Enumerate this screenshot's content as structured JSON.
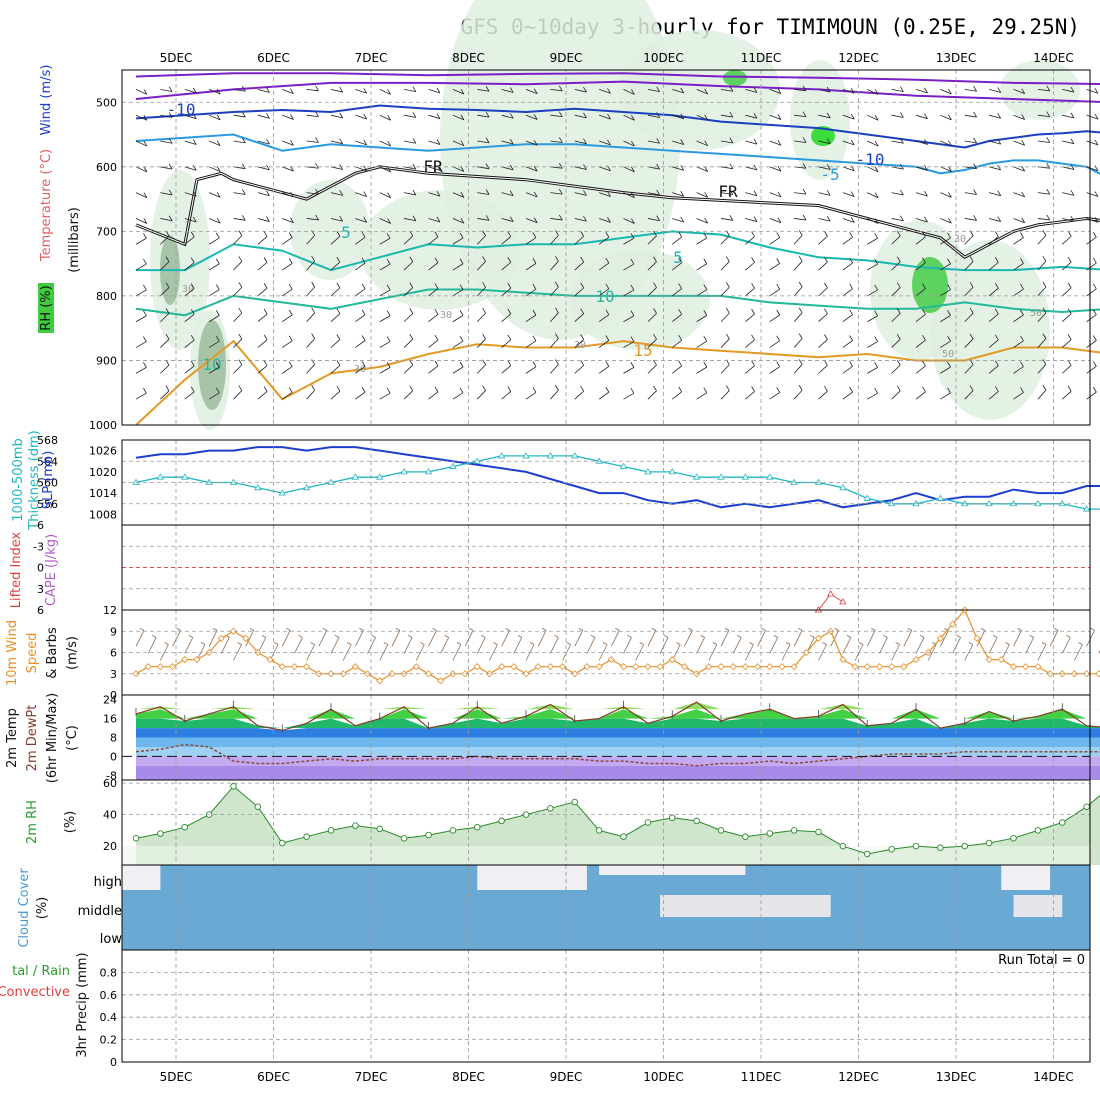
{
  "title": "GFS 0~10day 3-hourly for TIMIMOUN (0.25E, 29.25N)",
  "days": [
    "5DEC",
    "6DEC",
    "7DEC",
    "8DEC",
    "9DEC",
    "10DEC",
    "11DEC",
    "12DEC",
    "13DEC",
    "14DEC"
  ],
  "run_total": "Run Total = 0",
  "chart_data": [
    {
      "type": "heatmap",
      "panel": "upper-air",
      "ylabel_parts": [
        "RH (%)",
        "Temperature (°C)",
        "Wind (m/s)"
      ],
      "yaxis_label": "(millibars)",
      "ylim": [
        1000,
        450
      ],
      "yticks": [
        500,
        600,
        700,
        800,
        900,
        1000
      ],
      "isotherm_labels": [
        "-10",
        "-5",
        "FR",
        "5",
        "10",
        "15"
      ],
      "rh_labels": [
        "30",
        "50"
      ],
      "series": [
        {
          "name": "-10",
          "x": [
            0,
            4,
            8,
            12,
            16,
            20,
            24,
            28,
            32,
            36,
            40,
            44,
            48,
            52,
            56,
            60,
            64,
            66,
            68,
            70,
            72,
            74,
            76,
            78,
            80
          ],
          "values": [
            525,
            520,
            515,
            512,
            515,
            505,
            510,
            512,
            515,
            510,
            515,
            520,
            530,
            535,
            540,
            550,
            560,
            565,
            570,
            560,
            555,
            550,
            548,
            545,
            548
          ]
        },
        {
          "name": "-5",
          "x": [
            0,
            4,
            8,
            12,
            16,
            20,
            24,
            28,
            32,
            36,
            40,
            44,
            48,
            52,
            56,
            60,
            64,
            66,
            68,
            70,
            72,
            74,
            76,
            78,
            80
          ],
          "values": [
            560,
            555,
            550,
            575,
            565,
            570,
            575,
            570,
            565,
            565,
            570,
            575,
            580,
            585,
            590,
            595,
            600,
            610,
            605,
            595,
            590,
            590,
            595,
            600,
            620
          ]
        },
        {
          "name": "FR",
          "x": [
            0,
            4,
            5,
            7,
            8,
            12,
            14,
            16,
            18,
            20,
            24,
            28,
            32,
            36,
            40,
            44,
            48,
            52,
            56,
            60,
            62,
            64,
            66,
            68,
            70,
            72,
            74,
            76,
            78,
            80
          ],
          "values": [
            690,
            720,
            620,
            610,
            620,
            640,
            650,
            630,
            610,
            600,
            610,
            615,
            620,
            630,
            640,
            648,
            652,
            656,
            660,
            680,
            690,
            700,
            710,
            740,
            720,
            700,
            690,
            685,
            680,
            685
          ]
        },
        {
          "name": "5",
          "x": [
            0,
            4,
            8,
            12,
            16,
            20,
            24,
            28,
            32,
            36,
            40,
            44,
            48,
            52,
            56,
            60,
            64,
            68,
            72,
            76,
            80
          ],
          "values": [
            760,
            760,
            720,
            730,
            760,
            740,
            720,
            725,
            720,
            720,
            710,
            700,
            705,
            725,
            740,
            745,
            755,
            760,
            760,
            755,
            760
          ]
        },
        {
          "name": "10",
          "x": [
            0,
            4,
            8,
            12,
            16,
            20,
            24,
            28,
            32,
            36,
            40,
            44,
            48,
            52,
            56,
            60,
            64,
            68,
            72,
            76,
            80
          ],
          "values": [
            820,
            830,
            800,
            810,
            820,
            805,
            790,
            790,
            795,
            800,
            800,
            800,
            800,
            810,
            815,
            820,
            820,
            810,
            820,
            825,
            820
          ]
        },
        {
          "name": "15",
          "x": [
            0,
            4,
            8,
            12,
            16,
            20,
            24,
            28,
            32,
            36,
            40,
            44,
            48,
            52,
            56,
            60,
            64,
            68,
            72,
            76,
            80
          ],
          "values": [
            1000,
            930,
            870,
            960,
            920,
            910,
            890,
            875,
            880,
            880,
            870,
            880,
            885,
            890,
            895,
            890,
            900,
            900,
            880,
            880,
            890
          ]
        }
      ]
    },
    {
      "type": "line",
      "panel": "slp-thickness",
      "ylabel_left": "1000-500mb Thickness (dm)",
      "ylabel_right": "SLP (mb)",
      "ylim_left": [
        552,
        568
      ],
      "yticks_left": [
        556,
        560,
        564,
        568
      ],
      "ylim_right": [
        1005,
        1029
      ],
      "yticks_right": [
        1008,
        1014,
        1020,
        1026
      ],
      "series": [
        {
          "name": "SLP",
          "axis": "right",
          "x": [
            0,
            2,
            4,
            6,
            8,
            10,
            12,
            14,
            16,
            18,
            20,
            22,
            24,
            26,
            28,
            30,
            32,
            34,
            36,
            38,
            40,
            42,
            44,
            46,
            48,
            50,
            52,
            54,
            56,
            58,
            60,
            62,
            64,
            66,
            68,
            70,
            72,
            74,
            76,
            78,
            80
          ],
          "values": [
            1024,
            1025,
            1025,
            1026,
            1026,
            1027,
            1027,
            1026,
            1027,
            1027,
            1026,
            1025,
            1024,
            1023,
            1022,
            1021,
            1020,
            1018,
            1016,
            1014,
            1014,
            1012,
            1011,
            1012,
            1010,
            1011,
            1010,
            1011,
            1012,
            1010,
            1011,
            1012,
            1014,
            1012,
            1013,
            1013,
            1015,
            1014,
            1014,
            1016,
            1016
          ]
        },
        {
          "name": "Thickness",
          "axis": "left",
          "x": [
            0,
            2,
            4,
            6,
            8,
            10,
            12,
            14,
            16,
            18,
            20,
            22,
            24,
            26,
            28,
            30,
            32,
            34,
            36,
            38,
            40,
            42,
            44,
            46,
            48,
            50,
            52,
            54,
            56,
            58,
            60,
            62,
            64,
            66,
            68,
            70,
            72,
            74,
            76,
            78,
            80
          ],
          "values": [
            560,
            561,
            561,
            560,
            560,
            559,
            558,
            559,
            560,
            561,
            561,
            562,
            562,
            563,
            564,
            565,
            565,
            565,
            565,
            564,
            563,
            562,
            562,
            561,
            561,
            561,
            561,
            560,
            560,
            559,
            557,
            556,
            556,
            557,
            556,
            556,
            556,
            556,
            556,
            555,
            555
          ]
        }
      ]
    },
    {
      "type": "line",
      "panel": "cape-li",
      "ylabel_left": "Lifted Index",
      "ylabel_right": "CAPE (J/kg)",
      "ylim": [
        6,
        -6
      ],
      "yticks": [
        -6,
        -3,
        0,
        3,
        6
      ],
      "series": [
        {
          "name": "CAPE",
          "x": [
            56,
            57,
            58
          ],
          "values": [
            0,
            4,
            2
          ]
        }
      ]
    },
    {
      "type": "line",
      "panel": "wind10m",
      "ylabel": "10m Wind Speed & Barbs (m/s)",
      "ylim": [
        0,
        12
      ],
      "yticks": [
        0,
        3,
        6,
        9,
        12
      ],
      "series": [
        {
          "name": "Speed",
          "x": [
            0,
            1,
            2,
            3,
            4,
            5,
            6,
            7,
            8,
            9,
            10,
            11,
            12,
            13,
            14,
            15,
            16,
            17,
            18,
            19,
            20,
            21,
            22,
            23,
            24,
            25,
            26,
            27,
            28,
            29,
            30,
            31,
            32,
            33,
            34,
            35,
            36,
            37,
            38,
            39,
            40,
            41,
            42,
            43,
            44,
            45,
            46,
            47,
            48,
            49,
            50,
            51,
            52,
            53,
            54,
            55,
            56,
            57,
            58,
            59,
            60,
            61,
            62,
            63,
            64,
            65,
            66,
            67,
            68,
            69,
            70,
            71,
            72,
            73,
            74,
            75,
            76,
            77,
            78,
            79,
            80
          ],
          "values": [
            3,
            4,
            4,
            4,
            5,
            5,
            6,
            8,
            9,
            8,
            6,
            5,
            4,
            4,
            4,
            3,
            3,
            3,
            4,
            3,
            2,
            3,
            3,
            4,
            3,
            2,
            3,
            3,
            4,
            3,
            4,
            4,
            3,
            4,
            4,
            4,
            3,
            4,
            4,
            5,
            4,
            4,
            4,
            4,
            5,
            4,
            3,
            4,
            4,
            4,
            4,
            4,
            4,
            4,
            4,
            6,
            8,
            9,
            5,
            4,
            4,
            4,
            4,
            4,
            5,
            6,
            8,
            10,
            12,
            8,
            5,
            5,
            4,
            4,
            4,
            3,
            3,
            3,
            3,
            3,
            2
          ]
        }
      ]
    },
    {
      "type": "area",
      "panel": "temp2m",
      "ylabel": "2m Temp 2m DewPt (6hr Min/Max) (°C)",
      "ylim": [
        -10,
        26
      ],
      "yticks": [
        -8,
        0,
        8,
        16,
        24
      ],
      "series": [
        {
          "name": "Temp",
          "x": [
            0,
            2,
            4,
            6,
            8,
            10,
            12,
            14,
            16,
            18,
            20,
            22,
            24,
            26,
            28,
            30,
            32,
            34,
            36,
            38,
            40,
            42,
            44,
            46,
            48,
            50,
            52,
            54,
            56,
            58,
            60,
            62,
            64,
            66,
            68,
            70,
            72,
            74,
            76,
            78,
            80
          ],
          "values": [
            18,
            21,
            15,
            18,
            21,
            13,
            11,
            14,
            20,
            13,
            16,
            21,
            12,
            14,
            21,
            14,
            17,
            22,
            15,
            16,
            21,
            14,
            17,
            23,
            15,
            18,
            20,
            16,
            17,
            22,
            13,
            14,
            20,
            12,
            14,
            19,
            15,
            17,
            20,
            13,
            12
          ]
        },
        {
          "name": "DewPt",
          "x": [
            0,
            2,
            4,
            6,
            8,
            10,
            12,
            14,
            16,
            18,
            20,
            22,
            24,
            26,
            28,
            30,
            32,
            34,
            36,
            38,
            40,
            42,
            44,
            46,
            48,
            50,
            52,
            54,
            56,
            58,
            60,
            62,
            64,
            66,
            68,
            70,
            72,
            74,
            76,
            78,
            80
          ],
          "values": [
            2,
            3,
            5,
            4,
            -2,
            -3,
            -3,
            -2,
            -1,
            -2,
            -1,
            -1,
            -1,
            -1,
            0,
            -1,
            -1,
            -1,
            -1,
            -2,
            -2,
            -3,
            -3,
            -4,
            -3,
            -3,
            -2,
            -3,
            -2,
            -1,
            0,
            1,
            1,
            1,
            2,
            2,
            2,
            2,
            2,
            2,
            2
          ]
        }
      ]
    },
    {
      "type": "area",
      "panel": "rh2m",
      "ylabel": "2m RH (%)",
      "ylim": [
        8,
        62
      ],
      "yticks": [
        20,
        40,
        60
      ],
      "series": [
        {
          "name": "RH",
          "x": [
            0,
            2,
            4,
            6,
            8,
            10,
            12,
            14,
            16,
            18,
            20,
            22,
            24,
            26,
            28,
            30,
            32,
            34,
            36,
            38,
            40,
            42,
            44,
            46,
            48,
            50,
            52,
            54,
            56,
            58,
            60,
            62,
            64,
            66,
            68,
            70,
            72,
            74,
            76,
            78,
            80
          ],
          "values": [
            25,
            28,
            32,
            40,
            58,
            45,
            22,
            26,
            30,
            33,
            31,
            25,
            27,
            30,
            32,
            36,
            40,
            44,
            48,
            30,
            26,
            35,
            38,
            36,
            30,
            26,
            28,
            30,
            29,
            20,
            15,
            18,
            20,
            19,
            20,
            22,
            25,
            30,
            35,
            45,
            58
          ]
        }
      ]
    },
    {
      "type": "heatmap",
      "panel": "cloud",
      "ylabel": "Cloud Cover (%)",
      "levels": [
        "high",
        "middle",
        "low"
      ]
    },
    {
      "type": "bar",
      "panel": "precip",
      "ylabel_left": "Total / Rain",
      "ylabel_left2": "Convective",
      "ylabel": "3hr Precip (mm)",
      "ylim": [
        0,
        1
      ],
      "yticks": [
        "0",
        "0.2",
        "0.4",
        "0.6",
        "0.8"
      ],
      "values": []
    }
  ],
  "colors": {
    "grid": "#9a9a9a",
    "iso_m10": "#1a3fc0",
    "iso_m5": "#2a9ae0",
    "iso_5": "#18b8b0",
    "iso_10": "#22b89a",
    "iso_15": "#e39a24",
    "iso_neg": "#7a1ec8",
    "slp": "#1c3ed0",
    "thickness": "#20b8c0",
    "wind": "#e8902a",
    "rh_line": "#2a8a2a",
    "cloud": "#6aa9d4"
  },
  "side_labels": {
    "wind_part": "Wind (m/s)",
    "temp_part": "Temperature (°C)",
    "rh_part": "RH (%)",
    "mb": "(millibars)",
    "thickness": "1000-500mb",
    "thickness2": "Thickness (dm)",
    "slp": "SLP (mb)",
    "li": "Lifted Index",
    "cape": "CAPE (J/kg)",
    "w1": "10m Wind",
    "w2": "Speed",
    "w3": "& Barbs",
    "w4": "(m/s)",
    "t1": "2m Temp",
    "t2": "2m DewPt",
    "t3": "(6hr Min/Max)",
    "t4": "(°C)",
    "rh": "2m RH",
    "rhu": "(%)",
    "cc": "Cloud Cover",
    "ccu": "(%)",
    "p1": "tal / Rain",
    "p2": "Convective",
    "p3": "3hr Precip (mm)"
  }
}
